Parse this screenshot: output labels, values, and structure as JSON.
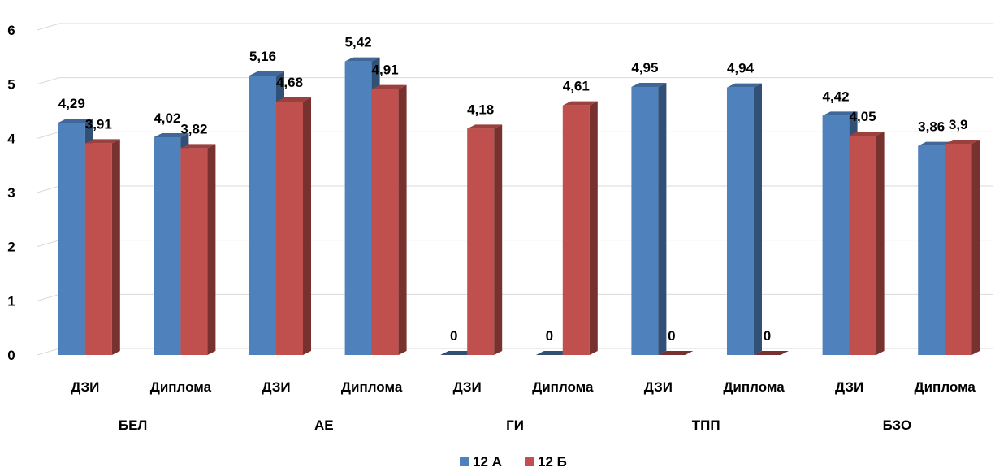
{
  "chart_data": {
    "type": "bar",
    "groups": [
      "БЕЛ",
      "АЕ",
      "ГИ",
      "ТПП",
      "БЗО"
    ],
    "categories": [
      "ДЗИ",
      "Диплома",
      "ДЗИ",
      "Диплома",
      "ДЗИ",
      "Диплома",
      "ДЗИ",
      "Диплома",
      "ДЗИ",
      "Диплома"
    ],
    "series": [
      {
        "name": "12 А",
        "color": "#4F81BD",
        "values": [
          4.29,
          4.02,
          5.16,
          5.42,
          0,
          0,
          4.95,
          4.94,
          4.42,
          3.86
        ],
        "labels": [
          "4,29",
          "4,02",
          "5,16",
          "5,42",
          "0",
          "0",
          "4,95",
          "4,94",
          "4,42",
          "3,86"
        ]
      },
      {
        "name": "12 Б",
        "color": "#C0504D",
        "values": [
          3.91,
          3.82,
          4.68,
          4.91,
          4.18,
          4.61,
          0,
          0,
          4.05,
          3.9
        ],
        "labels": [
          "3,91",
          "3,82",
          "4,68",
          "4,91",
          "4,18",
          "4,61",
          "0",
          "0",
          "4,05",
          "3,9"
        ]
      }
    ],
    "ylim": [
      0,
      6
    ],
    "yticks": [
      "0",
      "1",
      "2",
      "3",
      "4",
      "5",
      "6"
    ],
    "grid": true,
    "legend_position": "bottom"
  }
}
